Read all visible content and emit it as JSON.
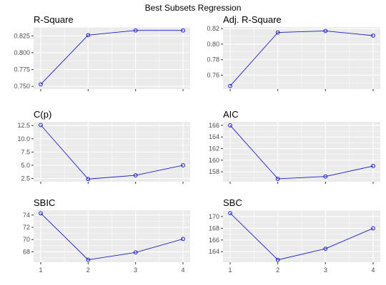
{
  "title": "Best Subsets Regression",
  "line_color": "#1a1acc",
  "panel_bg": "#ebebeb",
  "grid_color": "#ffffff",
  "chart_data": [
    {
      "type": "line",
      "title": "R-Square",
      "x": [
        1,
        2,
        3,
        4
      ],
      "y": [
        0.753,
        0.826,
        0.833,
        0.833
      ],
      "xlim": [
        0.85,
        4.15
      ],
      "ylim": [
        0.746,
        0.838
      ],
      "yticks": [
        0.75,
        0.775,
        0.8,
        0.825
      ],
      "ytick_labels": [
        "0.750",
        "0.775",
        "0.800",
        "0.825"
      ],
      "xticks": [
        1,
        2,
        3,
        4
      ],
      "show_x_labels": false
    },
    {
      "type": "line",
      "title": "Adj. R-Square",
      "x": [
        1,
        2,
        3,
        4
      ],
      "y": [
        0.746,
        0.815,
        0.817,
        0.811
      ],
      "xlim": [
        0.85,
        4.15
      ],
      "ylim": [
        0.742,
        0.822
      ],
      "yticks": [
        0.76,
        0.78,
        0.8,
        0.82
      ],
      "ytick_labels": [
        "0.76",
        "0.78",
        "0.80",
        "0.82"
      ],
      "xticks": [
        1,
        2,
        3,
        4
      ],
      "show_x_labels": false
    },
    {
      "type": "line",
      "title": "C(p)",
      "x": [
        1,
        2,
        3,
        4
      ],
      "y": [
        12.6,
        2.4,
        3.1,
        5.0
      ],
      "xlim": [
        0.85,
        4.15
      ],
      "ylim": [
        1.9,
        13.2
      ],
      "yticks": [
        2.5,
        5,
        7.5,
        10,
        12.5
      ],
      "ytick_labels": [
        "2.5",
        "5.0",
        "7.5",
        "10.0",
        "12.5"
      ],
      "xticks": [
        1,
        2,
        3,
        4
      ],
      "show_x_labels": false
    },
    {
      "type": "line",
      "title": "AIC",
      "x": [
        1,
        2,
        3,
        4
      ],
      "y": [
        166.0,
        156.8,
        157.2,
        159.0
      ],
      "xlim": [
        0.85,
        4.15
      ],
      "ylim": [
        156.3,
        166.6
      ],
      "yticks": [
        158,
        160,
        162,
        164,
        166
      ],
      "ytick_labels": [
        "158",
        "160",
        "162",
        "164",
        "166"
      ],
      "xticks": [
        1,
        2,
        3,
        4
      ],
      "show_x_labels": false
    },
    {
      "type": "line",
      "title": "SBIC",
      "x": [
        1,
        2,
        3,
        4
      ],
      "y": [
        74.3,
        66.7,
        67.9,
        70.1
      ],
      "xlim": [
        0.85,
        4.15
      ],
      "ylim": [
        66.3,
        74.8
      ],
      "yticks": [
        68,
        70,
        72,
        74
      ],
      "ytick_labels": [
        "68",
        "70",
        "72",
        "74"
      ],
      "xticks": [
        1,
        2,
        3,
        4
      ],
      "show_x_labels": true,
      "xtick_labels": [
        "1",
        "2",
        "3",
        "4"
      ]
    },
    {
      "type": "line",
      "title": "SBC",
      "x": [
        1,
        2,
        3,
        4
      ],
      "y": [
        170.6,
        162.6,
        164.5,
        168.0
      ],
      "xlim": [
        0.85,
        4.15
      ],
      "ylim": [
        162.2,
        171.1
      ],
      "yticks": [
        164,
        166,
        168,
        170
      ],
      "ytick_labels": [
        "164",
        "166",
        "168",
        "170"
      ],
      "xticks": [
        1,
        2,
        3,
        4
      ],
      "show_x_labels": true,
      "xtick_labels": [
        "1",
        "2",
        "3",
        "4"
      ]
    }
  ]
}
